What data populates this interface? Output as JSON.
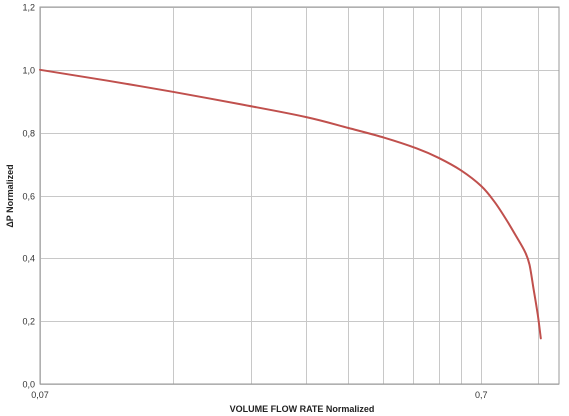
{
  "chart_data": {
    "type": "line",
    "title": "",
    "xlabel": "VOLUME FLOW RATE Normalized",
    "ylabel": "ΔP  Normalized",
    "x_scale": "log",
    "xlim": [
      0.07,
      1.05
    ],
    "ylim": [
      0,
      1.2
    ],
    "x_tick_labels": [
      {
        "value": 0.07,
        "label": "0,07"
      },
      {
        "value": 0.7,
        "label": "0,7"
      }
    ],
    "y_ticks": [
      {
        "value": 0,
        "label": "0,0"
      },
      {
        "value": 0.2,
        "label": "0,2"
      },
      {
        "value": 0.4,
        "label": "0,4"
      },
      {
        "value": 0.6,
        "label": "0,6"
      },
      {
        "value": 0.8,
        "label": "0,8"
      },
      {
        "value": 1.0,
        "label": "1,0"
      },
      {
        "value": 1.2,
        "label": "1,2"
      }
    ],
    "x_gridlines": [
      0.07,
      0.14,
      0.21,
      0.28,
      0.35,
      0.42,
      0.49,
      0.56,
      0.63,
      0.7,
      0.94
    ],
    "grid": true,
    "series": [
      {
        "color": "#c0504d",
        "x": [
          0.07,
          0.1,
          0.14,
          0.2,
          0.28,
          0.35,
          0.42,
          0.5,
          0.56,
          0.63,
          0.7,
          0.75,
          0.8,
          0.84,
          0.88,
          0.9,
          0.92,
          0.94,
          0.955
        ],
        "y": [
          1.0,
          0.965,
          0.93,
          0.89,
          0.85,
          0.815,
          0.785,
          0.75,
          0.72,
          0.68,
          0.63,
          0.58,
          0.52,
          0.47,
          0.42,
          0.38,
          0.3,
          0.22,
          0.145
        ]
      }
    ]
  }
}
